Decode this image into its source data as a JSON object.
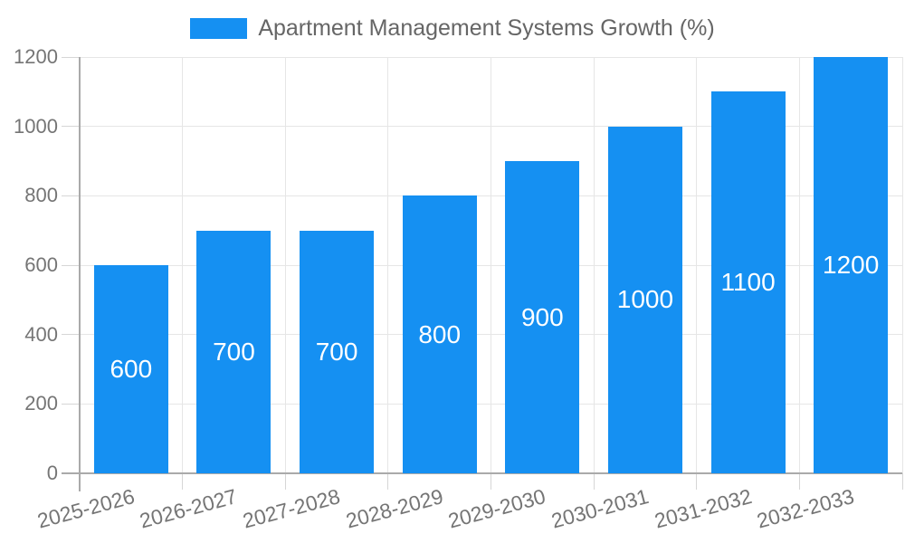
{
  "chart_data": {
    "type": "bar",
    "title": "Apartment Management Systems Growth (%)",
    "legend_entries": [
      "Apartment Management Systems Growth (%)"
    ],
    "legend_position": "top-center",
    "categories": [
      "2025-2026",
      "2026-2027",
      "2027-2028",
      "2028-2029",
      "2029-2030",
      "2030-2031",
      "2031-2032",
      "2032-2033"
    ],
    "values": [
      600,
      700,
      700,
      800,
      900,
      1000,
      1100,
      1200
    ],
    "bar_labels": [
      "600",
      "700",
      "700",
      "800",
      "900",
      "1000",
      "1100",
      "1200"
    ],
    "bar_label_position": "center-inside",
    "xlabel": "",
    "ylabel": "",
    "ylim": [
      0,
      1200
    ],
    "yticks": [
      0,
      200,
      400,
      600,
      800,
      1000,
      1200
    ],
    "grid": true
  },
  "colors": {
    "bar": "#1590F2",
    "grid": "#e6e6e6",
    "tick": "#d6d6d6",
    "axis": "#aaaaaa",
    "axis_label": "#757575",
    "title": "#666666",
    "bar_label": "#ffffff",
    "background": "#ffffff"
  }
}
